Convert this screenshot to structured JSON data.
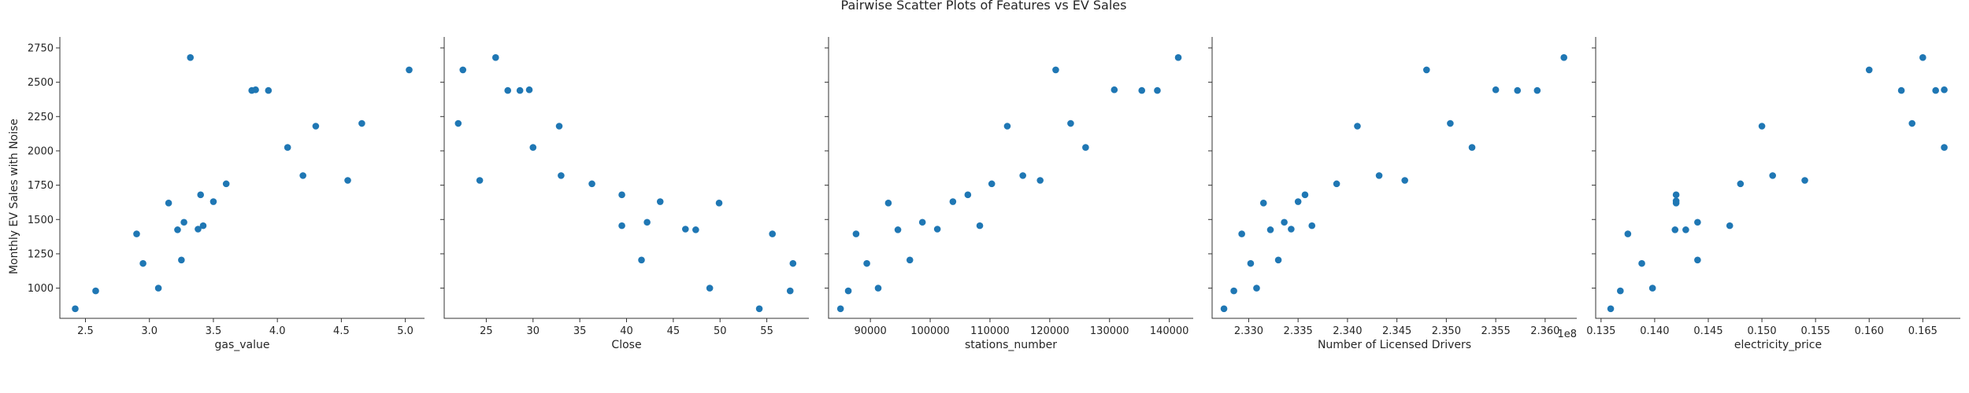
{
  "chart_data": {
    "type": "scatter",
    "title": "Pairwise Scatter Plots of Features vs EV Sales",
    "ylabel": "Monthly EV Sales with Noise",
    "ylim": [
      780,
      2830
    ],
    "yticks": [
      1000,
      1250,
      1500,
      1750,
      2000,
      2250,
      2500,
      2750
    ],
    "colors": {
      "marker": "#1f77b4"
    },
    "panels": [
      {
        "xlabel": "gas_value",
        "xlim": [
          2.3,
          5.15
        ],
        "xticks": [
          2.5,
          3.0,
          3.5,
          4.0,
          4.5,
          5.0
        ],
        "xtick_labels": [
          "2.5",
          "3.0",
          "3.5",
          "4.0",
          "4.5",
          "5.0"
        ],
        "offset_text": "",
        "points": [
          [
            2.42,
            850
          ],
          [
            2.58,
            980
          ],
          [
            2.9,
            1395
          ],
          [
            2.95,
            1180
          ],
          [
            3.07,
            1000
          ],
          [
            3.15,
            1620
          ],
          [
            3.22,
            1425
          ],
          [
            3.25,
            1205
          ],
          [
            3.27,
            1480
          ],
          [
            3.32,
            2680
          ],
          [
            3.38,
            1430
          ],
          [
            3.4,
            1680
          ],
          [
            3.42,
            1455
          ],
          [
            3.5,
            1630
          ],
          [
            3.6,
            1760
          ],
          [
            3.8,
            2440
          ],
          [
            3.83,
            2445
          ],
          [
            3.93,
            2440
          ],
          [
            4.08,
            2025
          ],
          [
            4.2,
            1820
          ],
          [
            4.3,
            2180
          ],
          [
            4.55,
            1785
          ],
          [
            4.66,
            2200
          ],
          [
            5.03,
            2590
          ]
        ]
      },
      {
        "xlabel": "Close",
        "xlim": [
          20.5,
          59.5
        ],
        "xticks": [
          25,
          30,
          35,
          40,
          45,
          50,
          55
        ],
        "xtick_labels": [
          "25",
          "30",
          "35",
          "40",
          "45",
          "50",
          "55"
        ],
        "offset_text": "",
        "points": [
          [
            22.0,
            2200
          ],
          [
            22.5,
            2590
          ],
          [
            24.3,
            1785
          ],
          [
            26.0,
            2680
          ],
          [
            27.3,
            2440
          ],
          [
            28.6,
            2440
          ],
          [
            29.6,
            2445
          ],
          [
            30.0,
            2025
          ],
          [
            32.8,
            2180
          ],
          [
            33.0,
            1820
          ],
          [
            36.3,
            1760
          ],
          [
            39.5,
            1680
          ],
          [
            39.5,
            1455
          ],
          [
            41.6,
            1205
          ],
          [
            42.2,
            1480
          ],
          [
            43.6,
            1630
          ],
          [
            46.3,
            1430
          ],
          [
            47.4,
            1425
          ],
          [
            48.9,
            1000
          ],
          [
            49.9,
            1620
          ],
          [
            54.2,
            850
          ],
          [
            55.6,
            1395
          ],
          [
            57.5,
            980
          ],
          [
            57.8,
            1180
          ]
        ]
      },
      {
        "xlabel": "stations_number",
        "xlim": [
          83000,
          144000
        ],
        "xticks": [
          90000,
          100000,
          110000,
          120000,
          130000,
          140000
        ],
        "xtick_labels": [
          "90000",
          "100000",
          "110000",
          "120000",
          "130000",
          "140000"
        ],
        "offset_text": "",
        "points": [
          [
            85000,
            850
          ],
          [
            86300,
            980
          ],
          [
            87600,
            1395
          ],
          [
            89400,
            1180
          ],
          [
            91300,
            1000
          ],
          [
            93000,
            1620
          ],
          [
            94600,
            1425
          ],
          [
            96600,
            1205
          ],
          [
            98700,
            1480
          ],
          [
            101200,
            1430
          ],
          [
            103800,
            1630
          ],
          [
            106300,
            1680
          ],
          [
            108300,
            1455
          ],
          [
            110300,
            1760
          ],
          [
            112900,
            2180
          ],
          [
            115500,
            1820
          ],
          [
            118400,
            1785
          ],
          [
            121000,
            2590
          ],
          [
            123500,
            2200
          ],
          [
            126000,
            2025
          ],
          [
            130800,
            2445
          ],
          [
            135400,
            2440
          ],
          [
            138000,
            2440
          ],
          [
            141500,
            2680
          ]
        ]
      },
      {
        "xlabel": "Number of Licensed Drivers",
        "xlim": [
          232.63,
          236.32
        ],
        "xticks": [
          233.0,
          233.5,
          234.0,
          234.5,
          235.0,
          235.5,
          236.0
        ],
        "xtick_labels": [
          "2.330",
          "2.335",
          "2.340",
          "2.345",
          "2.350",
          "2.355",
          "2.360"
        ],
        "offset_text": "1e8",
        "points": [
          [
            232.75,
            850
          ],
          [
            232.85,
            980
          ],
          [
            232.93,
            1395
          ],
          [
            233.02,
            1180
          ],
          [
            233.08,
            1000
          ],
          [
            233.15,
            1620
          ],
          [
            233.22,
            1425
          ],
          [
            233.3,
            1205
          ],
          [
            233.36,
            1480
          ],
          [
            233.43,
            1430
          ],
          [
            233.5,
            1630
          ],
          [
            233.57,
            1680
          ],
          [
            233.64,
            1455
          ],
          [
            233.89,
            1760
          ],
          [
            234.1,
            2180
          ],
          [
            234.32,
            1820
          ],
          [
            234.58,
            1785
          ],
          [
            234.8,
            2590
          ],
          [
            235.04,
            2200
          ],
          [
            235.26,
            2025
          ],
          [
            235.5,
            2445
          ],
          [
            235.72,
            2440
          ],
          [
            235.92,
            2440
          ],
          [
            236.19,
            2680
          ]
        ]
      },
      {
        "xlabel": "electricity_price",
        "xlim": [
          0.1345,
          0.1685
        ],
        "xticks": [
          0.135,
          0.14,
          0.145,
          0.15,
          0.155,
          0.16,
          0.165
        ],
        "xtick_labels": [
          "0.135",
          "0.140",
          "0.145",
          "0.150",
          "0.155",
          "0.160",
          "0.165"
        ],
        "offset_text": "",
        "points": [
          [
            0.1359,
            850
          ],
          [
            0.1368,
            980
          ],
          [
            0.1375,
            1395
          ],
          [
            0.1388,
            1180
          ],
          [
            0.1398,
            1000
          ],
          [
            0.142,
            1620
          ],
          [
            0.142,
            1680
          ],
          [
            0.142,
            1635
          ],
          [
            0.1419,
            1425
          ],
          [
            0.1429,
            1425
          ],
          [
            0.144,
            1480
          ],
          [
            0.144,
            1205
          ],
          [
            0.147,
            1455
          ],
          [
            0.148,
            1760
          ],
          [
            0.15,
            2180
          ],
          [
            0.151,
            1820
          ],
          [
            0.154,
            1785
          ],
          [
            0.16,
            2590
          ],
          [
            0.163,
            2440
          ],
          [
            0.164,
            2200
          ],
          [
            0.165,
            2680
          ],
          [
            0.1662,
            2440
          ],
          [
            0.167,
            2025
          ],
          [
            0.167,
            2445
          ]
        ]
      }
    ]
  }
}
